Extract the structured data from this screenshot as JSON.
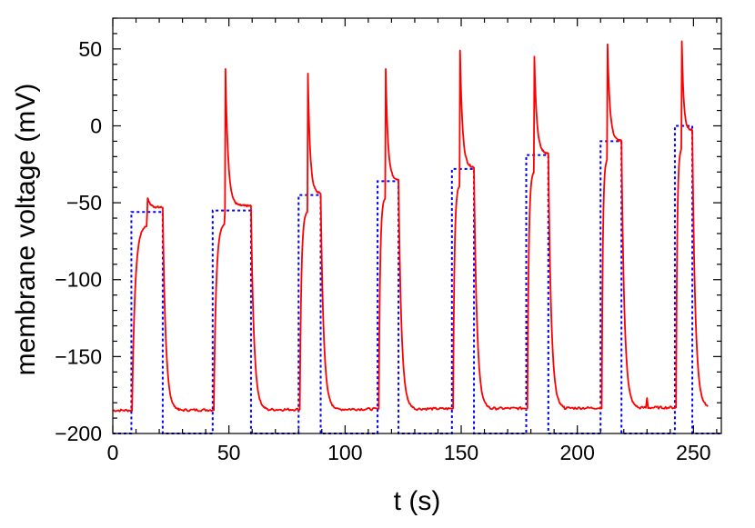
{
  "chart_data": {
    "type": "line",
    "xlabel": "t (s)",
    "ylabel": "membrane voltage (mV)",
    "xlim": [
      0,
      262
    ],
    "ylim": [
      -200,
      70
    ],
    "x_ticks": [
      0,
      50,
      100,
      150,
      200,
      250
    ],
    "x_tick_labels": [
      "0",
      "50",
      "100",
      "150",
      "200",
      "250"
    ],
    "y_ticks": [
      -200,
      -150,
      -100,
      -50,
      0,
      50
    ],
    "y_tick_labels": [
      "−200",
      "−150",
      "−100",
      "−50",
      "0",
      "50"
    ],
    "grid": false,
    "legend": "none",
    "series": [
      {
        "style": "solid",
        "color": "#ff0000",
        "pulses": [
          {
            "start": 8.3,
            "end": 21.5,
            "spike_t": 15.0,
            "spike_v": -47,
            "plateau": -53
          },
          {
            "start": 43.5,
            "end": 59.5,
            "spike_t": 48.5,
            "spike_v": 37,
            "plateau": -52
          },
          {
            "start": 80.5,
            "end": 89.5,
            "spike_t": 84.0,
            "spike_v": 34,
            "plateau": -44
          },
          {
            "start": 114.5,
            "end": 123.0,
            "spike_t": 117.5,
            "spike_v": 37,
            "plateau": -35
          },
          {
            "start": 146.5,
            "end": 155.5,
            "spike_t": 149.5,
            "spike_v": 49,
            "plateau": -27
          },
          {
            "start": 178.5,
            "end": 187.5,
            "spike_t": 181.5,
            "spike_v": 45,
            "plateau": -18
          },
          {
            "start": 210.5,
            "end": 219.0,
            "spike_t": 213.0,
            "spike_v": 53,
            "plateau": -10
          },
          {
            "start": 242.5,
            "end": 249.5,
            "spike_t": 245.0,
            "spike_v": 55,
            "plateau": -3
          }
        ],
        "rest_start": -185,
        "rest_end": -183,
        "t_end": 256,
        "small_spike": {
          "t": 230,
          "v": -177
        }
      },
      {
        "style": "dotted",
        "color": "#0000ff",
        "steps": [
          {
            "start": 8.0,
            "end": 21.5,
            "level": -56
          },
          {
            "start": 43.0,
            "end": 59.5,
            "level": -55
          },
          {
            "start": 80.0,
            "end": 89.5,
            "level": -45
          },
          {
            "start": 114.0,
            "end": 123.0,
            "level": -36
          },
          {
            "start": 146.0,
            "end": 155.5,
            "level": -28
          },
          {
            "start": 178.0,
            "end": 187.5,
            "level": -19
          },
          {
            "start": 210.0,
            "end": 219.0,
            "level": -10
          },
          {
            "start": 242.0,
            "end": 249.5,
            "level": 0
          }
        ],
        "baseline": -200
      }
    ]
  }
}
